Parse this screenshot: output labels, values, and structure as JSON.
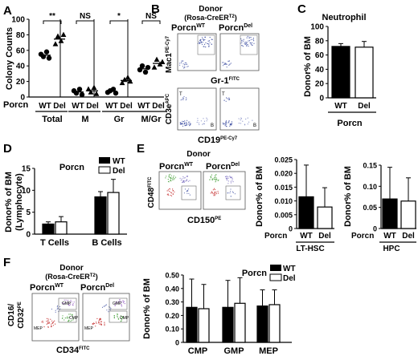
{
  "panels": {
    "A": {
      "letter": "A",
      "ylabel": "Colony Counts",
      "row_label": "Porcn",
      "wt": "WT",
      "del": "Del",
      "groups": [
        "Total",
        "M",
        "Gr",
        "M/Gr"
      ],
      "sig": [
        "**",
        "NS",
        "*",
        "NS"
      ]
    },
    "B": {
      "letter": "B",
      "title1": "Donor",
      "title2": "(Rosa-CreER",
      "title2_sup": "T2",
      "title2_end": ")",
      "wt_label": "Porcn",
      "wt_sup": "WT",
      "del_label": "Porcn",
      "del_sup": "Del",
      "top_ylabel": "Mac1",
      "top_ylabel_sup": "PE-Cy7",
      "top_xlabel": "Gr-1",
      "top_xlabel_sup": "FITC",
      "bot_ylabel": "CD3e",
      "bot_ylabel_sup": "APC",
      "bot_xlabel": "CD19",
      "bot_xlabel_sup": "PE-Cy7",
      "gate_T": "T",
      "gate_B": "B"
    },
    "C": {
      "letter": "C",
      "title": "Neutrophil",
      "ylabel": "Donor% of BM",
      "wt": "WT",
      "del": "Del",
      "group": "Porcn"
    },
    "D": {
      "letter": "D",
      "ylabel": "Donor% of BM",
      "ylabel2": "(Lymphocyte)",
      "legend_title": "Porcn",
      "wt": "WT",
      "del": "Del"
    },
    "E": {
      "letter": "E",
      "donor": "Donor",
      "wt_label": "Porcn",
      "wt_sup": "WT",
      "del_label": "Porcn",
      "del_sup": "Del",
      "ylabel": "CD48",
      "ylabel_sup": "FITC",
      "xlabel": "CD150",
      "xlabel_sup": "PE",
      "bar_ylabel": "Donor% of BM",
      "row_label": "Porcn",
      "wt": "WT",
      "del": "Del",
      "lt_group": "LT-HSC",
      "hpc_group": "HPC"
    },
    "F": {
      "letter": "F",
      "donor": "Donor",
      "donor2": "(Rosa-CreER",
      "donor2_sup": "T2",
      "donor2_end": ")",
      "wt_label": "Porcn",
      "wt_sup": "WT",
      "del_label": "Porcn",
      "del_sup": "Del",
      "ylabel": "CD16/",
      "ylabel2": "CD32",
      "ylabel2_sup": "PE",
      "xlabel": "CD34",
      "xlabel_sup": "FITC",
      "gate_gmp": "GMP",
      "gate_cmp": "CMP",
      "gate_mep": "MEP",
      "bar_ylabel": "Donor% of BM",
      "legend_title": "Porcn",
      "wt": "WT",
      "del": "Del"
    }
  },
  "chart_data": [
    {
      "panel": "A",
      "type": "scatter",
      "ylabel": "Colony Counts",
      "ylim": [
        0,
        100
      ],
      "yticks": [
        0,
        20,
        40,
        60,
        80,
        100
      ],
      "categories": [
        "Total",
        "M",
        "Gr",
        "M/Gr"
      ],
      "series": [
        {
          "name": "WT",
          "marker": "circle",
          "values": [
            [
              55,
              52,
              58,
              50
            ],
            [
              8,
              5,
              10,
              3
            ],
            [
              6,
              8,
              10,
              5
            ],
            [
              35,
              40,
              32,
              38
            ]
          ]
        },
        {
          "name": "Del",
          "marker": "triangle",
          "values": [
            [
              68,
              78,
              72,
              80
            ],
            [
              10,
              6,
              12,
              4
            ],
            [
              18,
              22,
              25,
              20
            ],
            [
              38,
              48,
              42,
              45
            ]
          ]
        }
      ]
    },
    {
      "panel": "C",
      "type": "bar",
      "title": "Neutrophil",
      "ylabel": "Donor% of BM",
      "ylim": [
        0,
        100
      ],
      "yticks": [
        0,
        20,
        40,
        60,
        80,
        100
      ],
      "categories": [
        "WT",
        "Del"
      ],
      "values": [
        72,
        71
      ],
      "errors": [
        4,
        8
      ]
    },
    {
      "panel": "D",
      "type": "bar",
      "ylabel": "Donor% of BM (Lymphocyte)",
      "ylim": [
        0,
        15
      ],
      "yticks": [
        0,
        5,
        10,
        15
      ],
      "categories": [
        "T Cells",
        "B Cells"
      ],
      "series": [
        {
          "name": "WT",
          "values": [
            2.3,
            8.5
          ],
          "errors": [
            0.5,
            1.2
          ]
        },
        {
          "name": "Del",
          "values": [
            2.8,
            9.5
          ],
          "errors": [
            1.2,
            3.0
          ]
        }
      ]
    },
    {
      "panel": "E-LT-HSC",
      "type": "bar",
      "ylabel": "Donor% of BM",
      "ylim": [
        0,
        0.025
      ],
      "yticks": [
        0,
        0.005,
        0.01,
        0.015,
        0.02,
        0.025
      ],
      "ytick_labels": [
        "0",
        "0.005",
        "0.010",
        "0.015",
        "0.020",
        "0.025"
      ],
      "categories": [
        "WT",
        "Del"
      ],
      "values": [
        0.0115,
        0.0078
      ],
      "errors": [
        0.0115,
        0.007
      ],
      "group": "LT-HSC"
    },
    {
      "panel": "E-HPC",
      "type": "bar",
      "ylabel": "Donor% of BM",
      "ylim": [
        0,
        0.15
      ],
      "yticks": [
        0,
        0.05,
        0.1,
        0.15
      ],
      "ytick_labels": [
        "0",
        "0.05",
        "0.10",
        "0.15"
      ],
      "categories": [
        "WT",
        "Del"
      ],
      "values": [
        0.07,
        0.065
      ],
      "errors": [
        0.075,
        0.055
      ],
      "group": "HPC"
    },
    {
      "panel": "F",
      "type": "bar",
      "ylabel": "Donor% of BM",
      "ylim": [
        0,
        0.5
      ],
      "yticks": [
        0,
        0.1,
        0.2,
        0.3,
        0.4,
        0.5
      ],
      "ytick_labels": [
        "0",
        "0.10",
        "0.20",
        "0.30",
        "0.40",
        "0.50"
      ],
      "categories": [
        "CMP",
        "GMP",
        "MEP"
      ],
      "series": [
        {
          "name": "WT",
          "values": [
            0.26,
            0.26,
            0.27
          ],
          "errors": [
            0.21,
            0.2,
            0.12
          ]
        },
        {
          "name": "Del",
          "values": [
            0.25,
            0.29,
            0.28
          ],
          "errors": [
            0.18,
            0.19,
            0.11
          ]
        }
      ]
    }
  ]
}
